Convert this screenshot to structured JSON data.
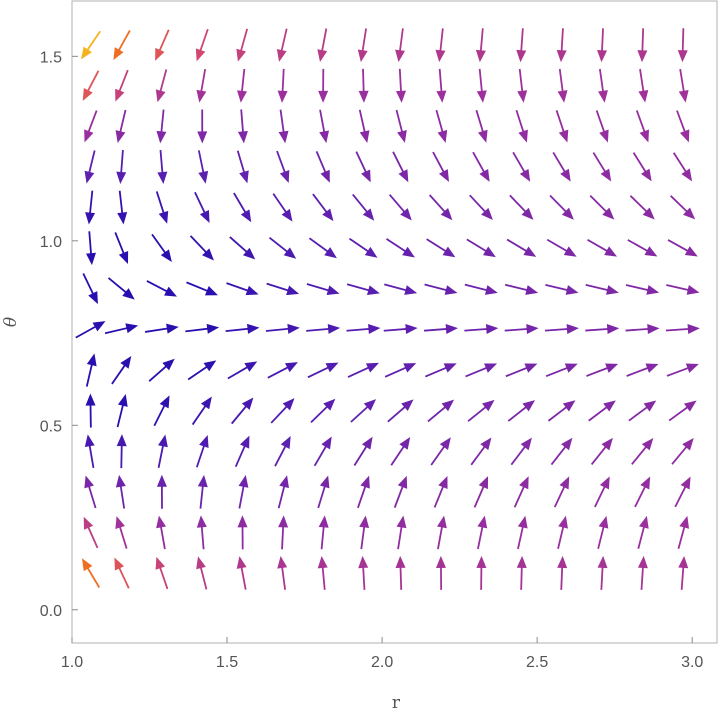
{
  "chart_data": {
    "type": "vector_field",
    "title": "",
    "xlabel": "r",
    "ylabel": "θ",
    "xlim": [
      1.0,
      3.08
    ],
    "ylim": [
      -0.09,
      1.65
    ],
    "x_ticks": [
      1.0,
      1.5,
      2.0,
      2.5,
      3.0
    ],
    "x_tick_labels": [
      "1.0",
      "1.5",
      "2.0",
      "2.5",
      "3.0"
    ],
    "y_ticks": [
      0.0,
      0.5,
      1.0,
      1.5
    ],
    "y_tick_labels": [
      "0.0",
      "0.5",
      "1.0",
      "1.5"
    ],
    "grid": false,
    "frame": "box",
    "field": {
      "description_of_rule": "dr/dt = sin(2θ) - 1/r^2 ; dθ/dt = cos(2θ)",
      "r_samples": [
        1.06,
        1.16,
        1.29,
        1.42,
        1.55,
        1.68,
        1.81,
        1.94,
        2.06,
        2.19,
        2.32,
        2.45,
        2.58,
        2.71,
        2.84,
        2.97
      ],
      "theta_samples": [
        0.1,
        0.21,
        0.32,
        0.43,
        0.54,
        0.65,
        0.76,
        0.87,
        0.98,
        1.09,
        1.2,
        1.31,
        1.42,
        1.53
      ],
      "color_scale": "magnitude: dark blue (small) → purple → magenta → orange → gold (large)"
    },
    "colors": {
      "low": "#2a0fb0",
      "mid_low": "#5c1fb0",
      "mid": "#9b2f9e",
      "mid_high": "#d84a6a",
      "high_orange": "#f07020",
      "high": "#f6b31a",
      "axis": "#8a8a8a",
      "text": "#555555"
    }
  }
}
